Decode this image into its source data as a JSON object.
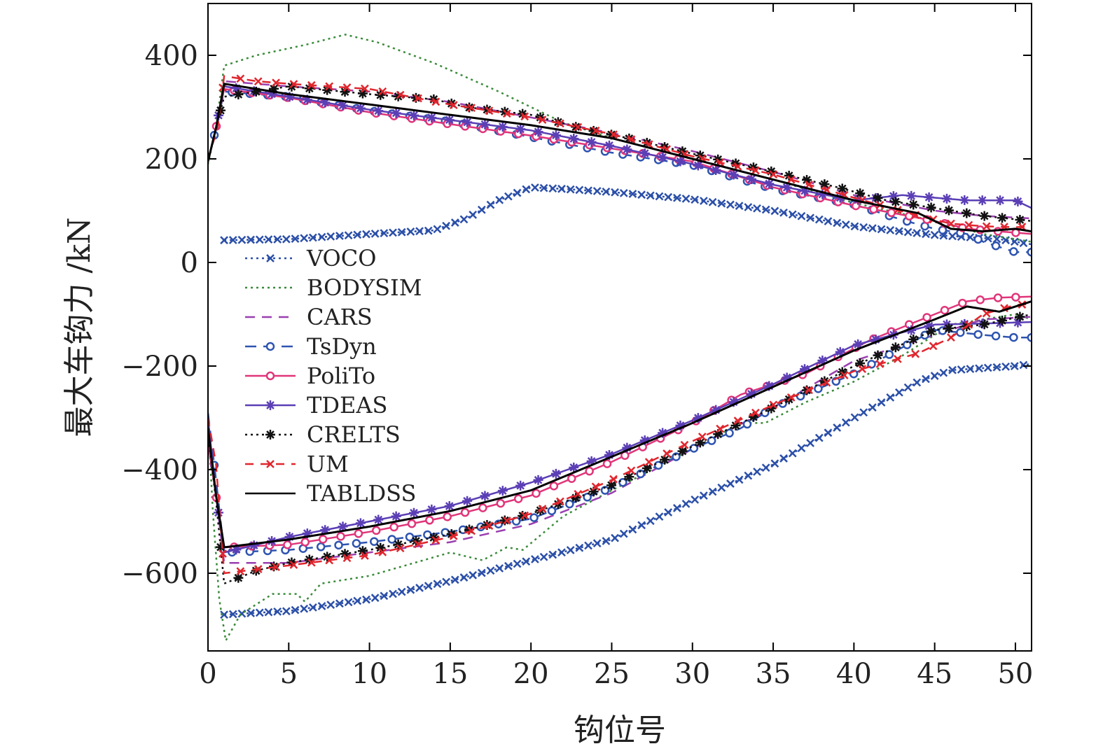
{
  "chart_data": {
    "type": "line",
    "title": "",
    "xlabel": "钩位号",
    "ylabel": "最大车钩力 /kN",
    "xlim": [
      0,
      51
    ],
    "ylim": [
      -750,
      500
    ],
    "xticks": [
      0,
      5,
      10,
      15,
      20,
      25,
      30,
      35,
      40,
      45,
      50
    ],
    "yticks": [
      400,
      200,
      0,
      -200,
      -400,
      -600
    ],
    "ytick_labels": [
      "400",
      "200",
      "0",
      "−200",
      "−400",
      "−600"
    ],
    "grid": false,
    "legend_position": "left-center",
    "series": [
      {
        "name": "VOCO",
        "color": "#2b4fa8",
        "dash": "3,5",
        "marker": "x",
        "tension": [
          [
            1,
            43
          ],
          [
            5,
            45
          ],
          [
            10,
            55
          ],
          [
            14,
            62
          ],
          [
            16,
            85
          ],
          [
            18,
            120
          ],
          [
            20,
            145
          ],
          [
            22,
            142
          ],
          [
            25,
            136
          ],
          [
            30,
            122
          ],
          [
            35,
            100
          ],
          [
            40,
            70
          ],
          [
            45,
            53
          ],
          [
            49,
            45
          ],
          [
            51,
            35
          ]
        ],
        "compression": [
          [
            1,
            -680
          ],
          [
            5,
            -673
          ],
          [
            10,
            -650
          ],
          [
            15,
            -615
          ],
          [
            20,
            -575
          ],
          [
            25,
            -535
          ],
          [
            30,
            -460
          ],
          [
            35,
            -390
          ],
          [
            40,
            -300
          ],
          [
            44,
            -230
          ],
          [
            46,
            -208
          ],
          [
            50,
            -200
          ],
          [
            51,
            -196
          ]
        ]
      },
      {
        "name": "BODYSIM",
        "color": "#3a8a3a",
        "dash": "3,5",
        "marker": "none",
        "tension": [
          [
            0,
            190
          ],
          [
            0.5,
            260
          ],
          [
            1,
            380
          ],
          [
            3,
            400
          ],
          [
            6,
            420
          ],
          [
            8.5,
            440
          ],
          [
            10.5,
            425
          ],
          [
            14,
            385
          ],
          [
            18,
            330
          ],
          [
            22,
            270
          ],
          [
            25,
            240
          ],
          [
            30,
            200
          ],
          [
            35,
            160
          ],
          [
            40,
            115
          ],
          [
            45,
            80
          ],
          [
            48,
            55
          ],
          [
            51,
            40
          ]
        ],
        "compression": [
          [
            0,
            -300
          ],
          [
            0.3,
            -480
          ],
          [
            0.7,
            -650
          ],
          [
            1.1,
            -730
          ],
          [
            2,
            -680
          ],
          [
            4,
            -640
          ],
          [
            5.5,
            -640
          ],
          [
            6,
            -655
          ],
          [
            7,
            -620
          ],
          [
            10,
            -605
          ],
          [
            15,
            -560
          ],
          [
            17,
            -575
          ],
          [
            18.5,
            -550
          ],
          [
            19.5,
            -555
          ],
          [
            22,
            -490
          ],
          [
            25,
            -440
          ],
          [
            30,
            -360
          ],
          [
            33,
            -310
          ],
          [
            34.5,
            -310
          ],
          [
            37,
            -270
          ],
          [
            40,
            -230
          ],
          [
            43,
            -180
          ],
          [
            46,
            -120
          ],
          [
            50,
            -100
          ],
          [
            51,
            -110
          ]
        ]
      },
      {
        "name": "CARS",
        "color": "#9b3fb0",
        "dash": "14,10",
        "marker": "none",
        "tension": [
          [
            0,
            195
          ],
          [
            0.6,
            270
          ],
          [
            1,
            350
          ],
          [
            5,
            340
          ],
          [
            10,
            330
          ],
          [
            15,
            310
          ],
          [
            20,
            280
          ],
          [
            25,
            250
          ],
          [
            30,
            215
          ],
          [
            35,
            175
          ],
          [
            40,
            130
          ],
          [
            45,
            100
          ],
          [
            48,
            90
          ],
          [
            51,
            85
          ]
        ],
        "compression": [
          [
            0,
            -300
          ],
          [
            0.5,
            -450
          ],
          [
            1,
            -580
          ],
          [
            5,
            -580
          ],
          [
            10,
            -560
          ],
          [
            15,
            -540
          ],
          [
            20,
            -505
          ],
          [
            25,
            -445
          ],
          [
            30,
            -360
          ],
          [
            35,
            -280
          ],
          [
            40,
            -190
          ],
          [
            45,
            -140
          ],
          [
            48,
            -110
          ],
          [
            51,
            -105
          ]
        ]
      },
      {
        "name": "TsDyn",
        "color": "#2e54b0",
        "dash": "16,10",
        "marker": "o",
        "tension": [
          [
            0,
            195
          ],
          [
            0.5,
            260
          ],
          [
            1,
            330
          ],
          [
            5,
            320
          ],
          [
            10,
            293
          ],
          [
            15,
            272
          ],
          [
            20,
            242
          ],
          [
            25,
            212
          ],
          [
            30,
            188
          ],
          [
            35,
            142
          ],
          [
            40,
            112
          ],
          [
            43,
            82
          ],
          [
            45,
            65
          ],
          [
            47,
            55
          ],
          [
            48,
            40
          ],
          [
            50,
            20
          ],
          [
            51,
            20
          ]
        ],
        "compression": [
          [
            0,
            -290
          ],
          [
            0.5,
            -420
          ],
          [
            1,
            -560
          ],
          [
            5,
            -555
          ],
          [
            10,
            -540
          ],
          [
            15,
            -520
          ],
          [
            20,
            -495
          ],
          [
            25,
            -435
          ],
          [
            30,
            -360
          ],
          [
            33,
            -320
          ],
          [
            35,
            -280
          ],
          [
            40,
            -215
          ],
          [
            45,
            -130
          ],
          [
            48,
            -140
          ],
          [
            50,
            -145
          ],
          [
            51,
            -145
          ]
        ]
      },
      {
        "name": "PoliTo",
        "color": "#e0357a",
        "dash": "",
        "marker": "o",
        "tension": [
          [
            0,
            195
          ],
          [
            0.5,
            260
          ],
          [
            1,
            335
          ],
          [
            5,
            318
          ],
          [
            10,
            290
          ],
          [
            15,
            267
          ],
          [
            20,
            245
          ],
          [
            25,
            220
          ],
          [
            30,
            195
          ],
          [
            35,
            145
          ],
          [
            40,
            110
          ],
          [
            45,
            80
          ],
          [
            47,
            65
          ],
          [
            49,
            60
          ],
          [
            51,
            55
          ]
        ],
        "compression": [
          [
            0,
            -350
          ],
          [
            0.5,
            -450
          ],
          [
            1,
            -550
          ],
          [
            5,
            -545
          ],
          [
            10,
            -520
          ],
          [
            15,
            -490
          ],
          [
            20,
            -450
          ],
          [
            25,
            -385
          ],
          [
            30,
            -310
          ],
          [
            33,
            -255
          ],
          [
            37,
            -215
          ],
          [
            41,
            -150
          ],
          [
            45,
            -100
          ],
          [
            47,
            -75
          ],
          [
            49,
            -68
          ],
          [
            51,
            -66
          ]
        ]
      },
      {
        "name": "TDEAS",
        "color": "#5b3fb5",
        "dash": "",
        "marker": "*",
        "tension": [
          [
            0,
            195
          ],
          [
            0.5,
            260
          ],
          [
            1,
            340
          ],
          [
            5,
            320
          ],
          [
            10,
            295
          ],
          [
            15,
            275
          ],
          [
            20,
            255
          ],
          [
            25,
            225
          ],
          [
            30,
            190
          ],
          [
            35,
            150
          ],
          [
            40,
            120
          ],
          [
            43,
            130
          ],
          [
            45,
            125
          ],
          [
            47,
            120
          ],
          [
            50,
            120
          ],
          [
            51,
            105
          ]
        ],
        "compression": [
          [
            0,
            -300
          ],
          [
            0.5,
            -450
          ],
          [
            1,
            -560
          ],
          [
            5,
            -530
          ],
          [
            10,
            -500
          ],
          [
            15,
            -470
          ],
          [
            20,
            -425
          ],
          [
            25,
            -370
          ],
          [
            30,
            -305
          ],
          [
            35,
            -235
          ],
          [
            40,
            -160
          ],
          [
            43,
            -135
          ],
          [
            45,
            -120
          ],
          [
            48,
            -118
          ],
          [
            51,
            -115
          ]
        ]
      },
      {
        "name": "CRELTS",
        "color": "#111111",
        "dash": "3,5",
        "marker": "*",
        "tension": [
          [
            0,
            195
          ],
          [
            0.5,
            260
          ],
          [
            1,
            320
          ],
          [
            5,
            340
          ],
          [
            10,
            325
          ],
          [
            14,
            315
          ],
          [
            16,
            300
          ],
          [
            20,
            285
          ],
          [
            23,
            260
          ],
          [
            26,
            240
          ],
          [
            30,
            210
          ],
          [
            35,
            175
          ],
          [
            39,
            145
          ],
          [
            42,
            120
          ],
          [
            45,
            105
          ],
          [
            48,
            90
          ],
          [
            51,
            80
          ]
        ],
        "compression": [
          [
            0,
            -330
          ],
          [
            0.5,
            -460
          ],
          [
            1,
            -620
          ],
          [
            3,
            -595
          ],
          [
            5,
            -580
          ],
          [
            10,
            -555
          ],
          [
            15,
            -525
          ],
          [
            20,
            -485
          ],
          [
            25,
            -430
          ],
          [
            30,
            -355
          ],
          [
            35,
            -280
          ],
          [
            40,
            -200
          ],
          [
            45,
            -130
          ],
          [
            48,
            -120
          ],
          [
            51,
            -100
          ]
        ]
      },
      {
        "name": "UM",
        "color": "#e0262e",
        "dash": "12,10",
        "marker": "x",
        "tension": [
          [
            0,
            200
          ],
          [
            0.6,
            260
          ],
          [
            1,
            360
          ],
          [
            3,
            350
          ],
          [
            5,
            345
          ],
          [
            10,
            335
          ],
          [
            15,
            305
          ],
          [
            20,
            280
          ],
          [
            25,
            248
          ],
          [
            30,
            205
          ],
          [
            35,
            170
          ],
          [
            40,
            125
          ],
          [
            44,
            90
          ],
          [
            46,
            75
          ],
          [
            48,
            70
          ],
          [
            50,
            68
          ],
          [
            51,
            70
          ]
        ],
        "compression": [
          [
            0,
            -300
          ],
          [
            0.5,
            -390
          ],
          [
            1,
            -600
          ],
          [
            5,
            -585
          ],
          [
            10,
            -565
          ],
          [
            15,
            -530
          ],
          [
            20,
            -485
          ],
          [
            25,
            -420
          ],
          [
            30,
            -345
          ],
          [
            35,
            -275
          ],
          [
            40,
            -210
          ],
          [
            44,
            -175
          ],
          [
            46,
            -145
          ],
          [
            48,
            -100
          ],
          [
            50,
            -82
          ],
          [
            51,
            -80
          ]
        ]
      },
      {
        "name": "TABLDSS",
        "color": "#000000",
        "dash": "",
        "marker": "none",
        "tension": [
          [
            0,
            195
          ],
          [
            0.5,
            260
          ],
          [
            1,
            345
          ],
          [
            5,
            325
          ],
          [
            10,
            305
          ],
          [
            15,
            285
          ],
          [
            20,
            265
          ],
          [
            25,
            240
          ],
          [
            30,
            200
          ],
          [
            35,
            160
          ],
          [
            40,
            120
          ],
          [
            44,
            95
          ],
          [
            46,
            65
          ],
          [
            48,
            60
          ],
          [
            50,
            65
          ],
          [
            51,
            60
          ]
        ],
        "compression": [
          [
            0,
            -320
          ],
          [
            0.5,
            -450
          ],
          [
            1,
            -550
          ],
          [
            5,
            -535
          ],
          [
            10,
            -510
          ],
          [
            15,
            -480
          ],
          [
            20,
            -440
          ],
          [
            25,
            -375
          ],
          [
            30,
            -310
          ],
          [
            35,
            -240
          ],
          [
            40,
            -170
          ],
          [
            45,
            -110
          ],
          [
            47,
            -85
          ],
          [
            49,
            -95
          ],
          [
            51,
            -75
          ]
        ]
      }
    ]
  }
}
